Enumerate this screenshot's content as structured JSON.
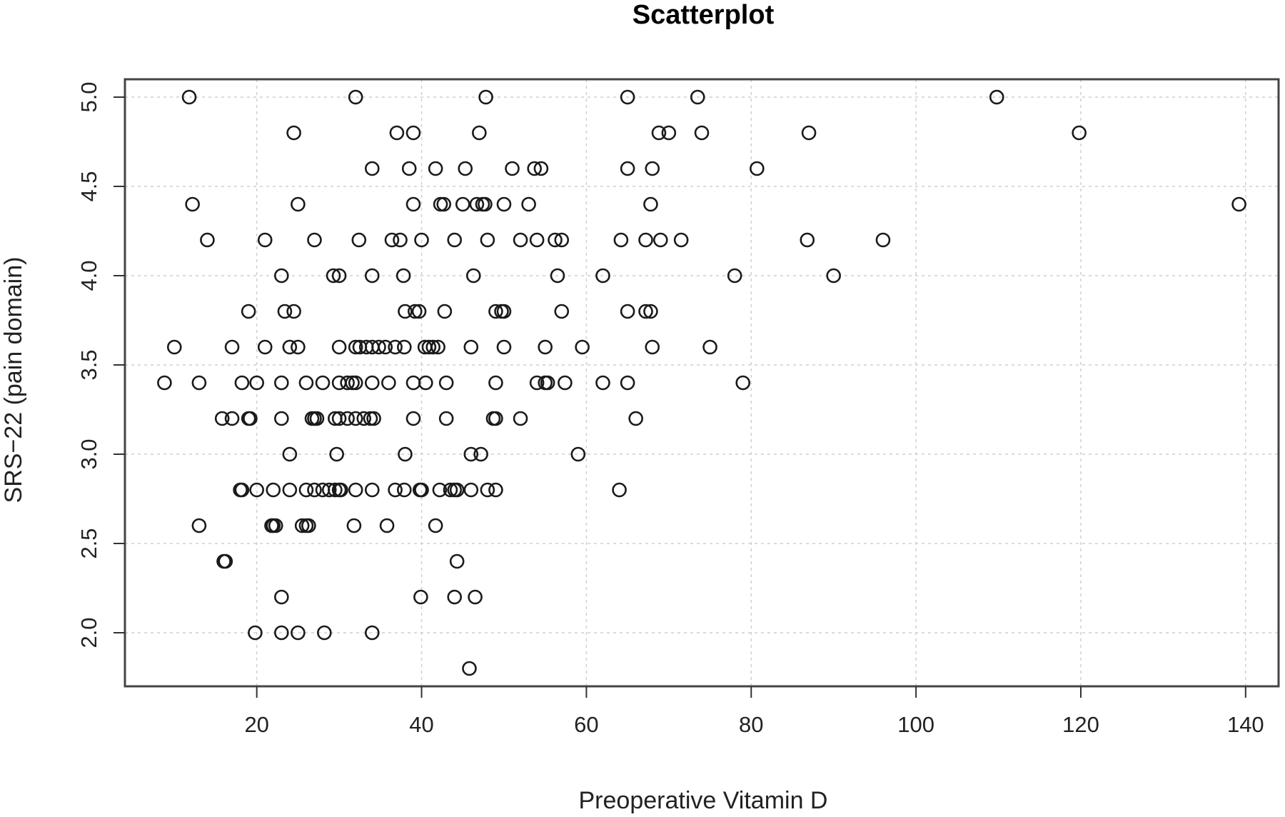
{
  "chart_data": {
    "type": "scatter",
    "title": "Scatterplot",
    "xlabel": "Preoperative Vitamin D",
    "ylabel": "SRS−22 (pain domain)",
    "xlim": [
      4,
      144
    ],
    "ylim": [
      1.7,
      5.1
    ],
    "x_ticks": [
      20,
      40,
      60,
      80,
      100,
      120,
      140
    ],
    "y_ticks": [
      2.0,
      2.5,
      3.0,
      3.5,
      4.0,
      4.5,
      5.0
    ],
    "x_tick_labels": [
      "20",
      "40",
      "60",
      "80",
      "100",
      "120",
      "140"
    ],
    "y_tick_labels": [
      "2.0",
      "2.5",
      "3.0",
      "3.5",
      "4.0",
      "4.5",
      "5.0"
    ],
    "grid": true,
    "points": [
      [
        11.8,
        5.0
      ],
      [
        32.0,
        5.0
      ],
      [
        47.8,
        5.0
      ],
      [
        65.0,
        5.0
      ],
      [
        73.5,
        5.0
      ],
      [
        109.8,
        5.0
      ],
      [
        24.5,
        4.8
      ],
      [
        37.0,
        4.8
      ],
      [
        39.0,
        4.8
      ],
      [
        47.0,
        4.8
      ],
      [
        68.8,
        4.8
      ],
      [
        70.0,
        4.8
      ],
      [
        74.0,
        4.8
      ],
      [
        87.0,
        4.8
      ],
      [
        119.8,
        4.8
      ],
      [
        34.0,
        4.6
      ],
      [
        38.5,
        4.6
      ],
      [
        41.7,
        4.6
      ],
      [
        45.3,
        4.6
      ],
      [
        51.0,
        4.6
      ],
      [
        53.7,
        4.6
      ],
      [
        54.5,
        4.6
      ],
      [
        65.0,
        4.6
      ],
      [
        68.0,
        4.6
      ],
      [
        80.7,
        4.6
      ],
      [
        12.2,
        4.4
      ],
      [
        25.0,
        4.4
      ],
      [
        39.0,
        4.4
      ],
      [
        42.3,
        4.4
      ],
      [
        42.7,
        4.4
      ],
      [
        45.0,
        4.4
      ],
      [
        46.7,
        4.4
      ],
      [
        47.4,
        4.4
      ],
      [
        47.7,
        4.4
      ],
      [
        50.0,
        4.4
      ],
      [
        53.0,
        4.4
      ],
      [
        67.8,
        4.4
      ],
      [
        139.2,
        4.4
      ],
      [
        14.0,
        4.2
      ],
      [
        21.0,
        4.2
      ],
      [
        27.0,
        4.2
      ],
      [
        32.4,
        4.2
      ],
      [
        36.4,
        4.2
      ],
      [
        37.4,
        4.2
      ],
      [
        40.0,
        4.2
      ],
      [
        44.0,
        4.2
      ],
      [
        48.0,
        4.2
      ],
      [
        52.0,
        4.2
      ],
      [
        54.0,
        4.2
      ],
      [
        56.2,
        4.2
      ],
      [
        57.0,
        4.2
      ],
      [
        64.2,
        4.2
      ],
      [
        67.2,
        4.2
      ],
      [
        69.0,
        4.2
      ],
      [
        71.5,
        4.2
      ],
      [
        86.8,
        4.2
      ],
      [
        96.0,
        4.2
      ],
      [
        23.0,
        4.0
      ],
      [
        29.3,
        4.0
      ],
      [
        30.0,
        4.0
      ],
      [
        34.0,
        4.0
      ],
      [
        37.8,
        4.0
      ],
      [
        46.3,
        4.0
      ],
      [
        56.5,
        4.0
      ],
      [
        62.0,
        4.0
      ],
      [
        78.0,
        4.0
      ],
      [
        90.0,
        4.0
      ],
      [
        19.0,
        3.8
      ],
      [
        23.4,
        3.8
      ],
      [
        24.5,
        3.8
      ],
      [
        38.0,
        3.8
      ],
      [
        39.2,
        3.8
      ],
      [
        39.7,
        3.8
      ],
      [
        42.8,
        3.8
      ],
      [
        49.0,
        3.8
      ],
      [
        49.7,
        3.8
      ],
      [
        50.0,
        3.8
      ],
      [
        57.0,
        3.8
      ],
      [
        65.0,
        3.8
      ],
      [
        67.2,
        3.8
      ],
      [
        67.8,
        3.8
      ],
      [
        10.0,
        3.6
      ],
      [
        17.0,
        3.6
      ],
      [
        21.0,
        3.6
      ],
      [
        24.0,
        3.6
      ],
      [
        25.0,
        3.6
      ],
      [
        30.0,
        3.6
      ],
      [
        32.0,
        3.6
      ],
      [
        32.5,
        3.6
      ],
      [
        33.3,
        3.6
      ],
      [
        34.0,
        3.6
      ],
      [
        34.8,
        3.6
      ],
      [
        35.6,
        3.6
      ],
      [
        36.8,
        3.6
      ],
      [
        37.9,
        3.6
      ],
      [
        40.4,
        3.6
      ],
      [
        40.9,
        3.6
      ],
      [
        41.4,
        3.6
      ],
      [
        42.0,
        3.6
      ],
      [
        46.0,
        3.6
      ],
      [
        50.0,
        3.6
      ],
      [
        55.0,
        3.6
      ],
      [
        59.5,
        3.6
      ],
      [
        68.0,
        3.6
      ],
      [
        75.0,
        3.6
      ],
      [
        8.8,
        3.4
      ],
      [
        13.0,
        3.4
      ],
      [
        18.2,
        3.4
      ],
      [
        20.0,
        3.4
      ],
      [
        23.0,
        3.4
      ],
      [
        26.0,
        3.4
      ],
      [
        28.0,
        3.4
      ],
      [
        30.0,
        3.4
      ],
      [
        31.0,
        3.4
      ],
      [
        31.6,
        3.4
      ],
      [
        32.0,
        3.4
      ],
      [
        34.0,
        3.4
      ],
      [
        36.0,
        3.4
      ],
      [
        39.0,
        3.4
      ],
      [
        40.5,
        3.4
      ],
      [
        43.0,
        3.4
      ],
      [
        49.0,
        3.4
      ],
      [
        54.0,
        3.4
      ],
      [
        55.0,
        3.4
      ],
      [
        55.3,
        3.4
      ],
      [
        57.4,
        3.4
      ],
      [
        62.0,
        3.4
      ],
      [
        65.0,
        3.4
      ],
      [
        79.0,
        3.4
      ],
      [
        15.8,
        3.2
      ],
      [
        17.0,
        3.2
      ],
      [
        19.0,
        3.2
      ],
      [
        19.2,
        3.2
      ],
      [
        23.0,
        3.2
      ],
      [
        26.7,
        3.2
      ],
      [
        27.0,
        3.2
      ],
      [
        27.3,
        3.2
      ],
      [
        29.5,
        3.2
      ],
      [
        30.0,
        3.2
      ],
      [
        31.0,
        3.2
      ],
      [
        32.0,
        3.2
      ],
      [
        33.0,
        3.2
      ],
      [
        33.8,
        3.2
      ],
      [
        34.2,
        3.2
      ],
      [
        39.0,
        3.2
      ],
      [
        43.0,
        3.2
      ],
      [
        48.7,
        3.2
      ],
      [
        49.0,
        3.2
      ],
      [
        52.0,
        3.2
      ],
      [
        66.0,
        3.2
      ],
      [
        24.0,
        3.0
      ],
      [
        29.7,
        3.0
      ],
      [
        38.0,
        3.0
      ],
      [
        46.0,
        3.0
      ],
      [
        47.2,
        3.0
      ],
      [
        59.0,
        3.0
      ],
      [
        18.0,
        2.8
      ],
      [
        18.2,
        2.8
      ],
      [
        20.0,
        2.8
      ],
      [
        22.0,
        2.8
      ],
      [
        24.0,
        2.8
      ],
      [
        26.0,
        2.8
      ],
      [
        27.0,
        2.8
      ],
      [
        28.0,
        2.8
      ],
      [
        28.8,
        2.8
      ],
      [
        29.5,
        2.8
      ],
      [
        30.0,
        2.8
      ],
      [
        30.2,
        2.8
      ],
      [
        32.0,
        2.8
      ],
      [
        34.0,
        2.8
      ],
      [
        36.8,
        2.8
      ],
      [
        37.9,
        2.8
      ],
      [
        39.8,
        2.8
      ],
      [
        40.0,
        2.8
      ],
      [
        42.2,
        2.8
      ],
      [
        43.5,
        2.8
      ],
      [
        44.0,
        2.8
      ],
      [
        44.3,
        2.8
      ],
      [
        46.0,
        2.8
      ],
      [
        48.0,
        2.8
      ],
      [
        49.0,
        2.8
      ],
      [
        64.0,
        2.8
      ],
      [
        13.0,
        2.6
      ],
      [
        21.8,
        2.6
      ],
      [
        22.0,
        2.6
      ],
      [
        22.3,
        2.6
      ],
      [
        25.5,
        2.6
      ],
      [
        26.0,
        2.6
      ],
      [
        26.3,
        2.6
      ],
      [
        31.8,
        2.6
      ],
      [
        35.8,
        2.6
      ],
      [
        41.7,
        2.6
      ],
      [
        16.0,
        2.4
      ],
      [
        16.2,
        2.4
      ],
      [
        44.3,
        2.4
      ],
      [
        23.0,
        2.2
      ],
      [
        39.9,
        2.2
      ],
      [
        44.0,
        2.2
      ],
      [
        46.5,
        2.2
      ],
      [
        19.8,
        2.0
      ],
      [
        23.0,
        2.0
      ],
      [
        25.0,
        2.0
      ],
      [
        28.2,
        2.0
      ],
      [
        34.0,
        2.0
      ],
      [
        45.8,
        1.8
      ]
    ]
  }
}
